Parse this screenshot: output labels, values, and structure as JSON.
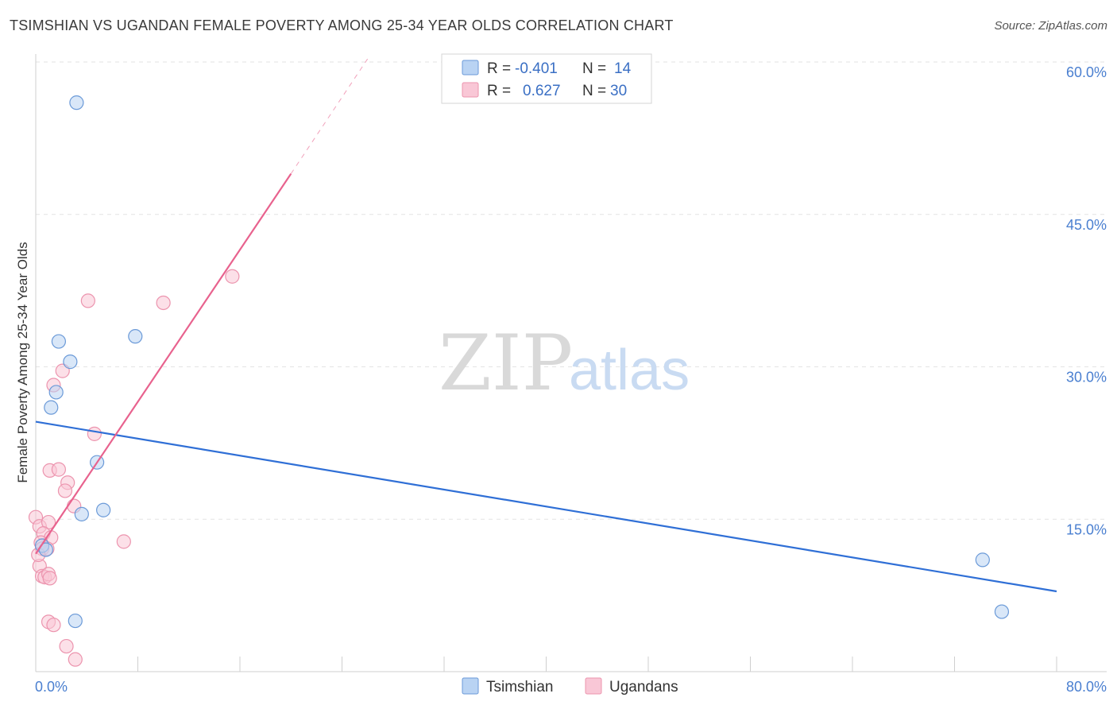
{
  "header": {
    "title": "TSIMSHIAN VS UGANDAN FEMALE POVERTY AMONG 25-34 YEAR OLDS CORRELATION CHART",
    "source": "Source: ZipAtlas.com"
  },
  "watermark": {
    "zip": "ZIP",
    "atlas": "atlas"
  },
  "colors": {
    "tsimshian_fill": "#b9d3f3",
    "tsimshian_stroke": "#6b9ad8",
    "tsimshian_line": "#2f6fd6",
    "ugandans_fill": "#f9c7d6",
    "ugandans_stroke": "#ec94ae",
    "ugandans_line": "#e8628e",
    "grid": "#e3e3e3",
    "tick_label": "#4a7fd0"
  },
  "legend": {
    "rows": [
      {
        "r_label": "R =",
        "r_value": "-0.401",
        "n_label": "N =",
        "n_value": "14"
      },
      {
        "r_label": "R =",
        "r_value": "0.627",
        "n_label": "N =",
        "n_value": "30"
      }
    ]
  },
  "chart_data": {
    "type": "scatter",
    "title": "TSIMSHIAN VS UGANDAN FEMALE POVERTY AMONG 25-34 YEAR OLDS CORRELATION CHART",
    "xlabel": "",
    "ylabel": "Female Poverty Among 25-34 Year Olds",
    "xlim": [
      0,
      80
    ],
    "ylim": [
      0,
      60
    ],
    "x_tick_labels": [
      "0.0%",
      "80.0%"
    ],
    "y_ticks": [
      15,
      30,
      45,
      60
    ],
    "y_tick_labels": [
      "15.0%",
      "30.0%",
      "45.0%",
      "60.0%"
    ],
    "grid": true,
    "legend_position": "top-center",
    "series": [
      {
        "name": "Tsimshian",
        "points": [
          [
            3.2,
            56.0
          ],
          [
            1.8,
            32.5
          ],
          [
            2.7,
            30.5
          ],
          [
            1.6,
            27.5
          ],
          [
            1.2,
            26.0
          ],
          [
            7.8,
            33.0
          ],
          [
            4.8,
            20.6
          ],
          [
            5.3,
            15.9
          ],
          [
            3.6,
            15.5
          ],
          [
            0.5,
            12.4
          ],
          [
            0.8,
            12.0
          ],
          [
            3.1,
            5.0
          ],
          [
            74.2,
            11.0
          ],
          [
            75.7,
            5.9
          ]
        ],
        "trend": {
          "x0": 0,
          "y0": 24.6,
          "x1": 80,
          "y1": 7.9
        }
      },
      {
        "name": "Ugandans",
        "points": [
          [
            4.1,
            36.5
          ],
          [
            10.0,
            36.3
          ],
          [
            15.4,
            38.9
          ],
          [
            2.1,
            29.6
          ],
          [
            1.4,
            28.2
          ],
          [
            4.6,
            23.4
          ],
          [
            1.1,
            19.8
          ],
          [
            1.8,
            19.9
          ],
          [
            2.5,
            18.6
          ],
          [
            2.3,
            17.8
          ],
          [
            3.0,
            16.3
          ],
          [
            0.0,
            15.2
          ],
          [
            0.3,
            14.3
          ],
          [
            1.0,
            14.7
          ],
          [
            0.6,
            13.6
          ],
          [
            1.2,
            13.2
          ],
          [
            0.4,
            12.7
          ],
          [
            0.5,
            12.1
          ],
          [
            0.9,
            12.1
          ],
          [
            6.9,
            12.8
          ],
          [
            0.3,
            10.4
          ],
          [
            0.5,
            9.4
          ],
          [
            0.7,
            9.3
          ],
          [
            1.0,
            9.6
          ],
          [
            1.1,
            9.2
          ],
          [
            1.0,
            4.9
          ],
          [
            1.4,
            4.6
          ],
          [
            2.4,
            2.5
          ],
          [
            3.1,
            1.2
          ],
          [
            0.2,
            11.5
          ]
        ],
        "trend": {
          "x0": 0,
          "y0": 11.6,
          "x1": 20,
          "y1": 49.0,
          "dashed_x1": 26,
          "dashed_y1": 60.3
        }
      }
    ]
  }
}
